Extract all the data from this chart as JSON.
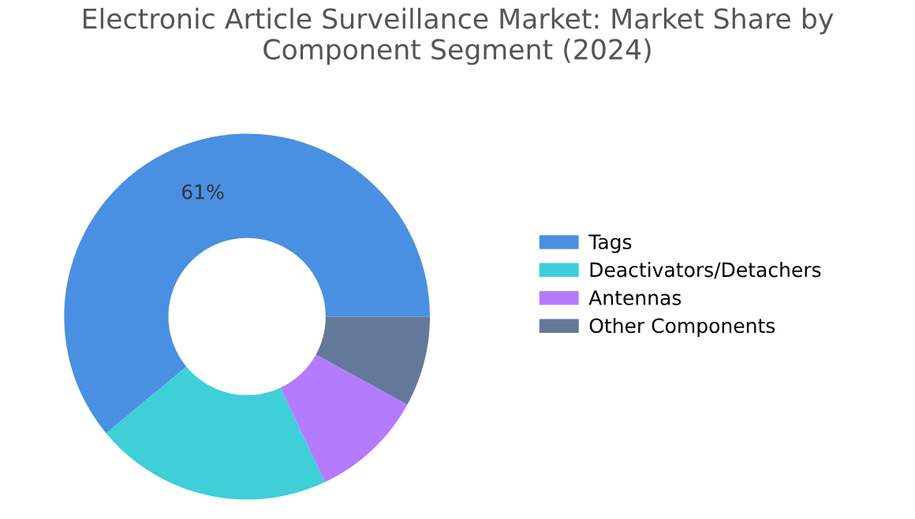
{
  "chart_data": {
    "type": "donut",
    "title": "Electronic Article Surveillance Market: Market Share by Component Segment (2024)",
    "categories": [
      "Tags",
      "Deactivators/Detachers",
      "Antennas",
      "Other Components"
    ],
    "values": [
      61,
      21,
      10,
      8
    ],
    "colors": [
      "#4a90e2",
      "#3ecfd9",
      "#b57bff",
      "#64789a"
    ],
    "value_labels": [
      "61%",
      null,
      null,
      null
    ],
    "legend": "right"
  }
}
